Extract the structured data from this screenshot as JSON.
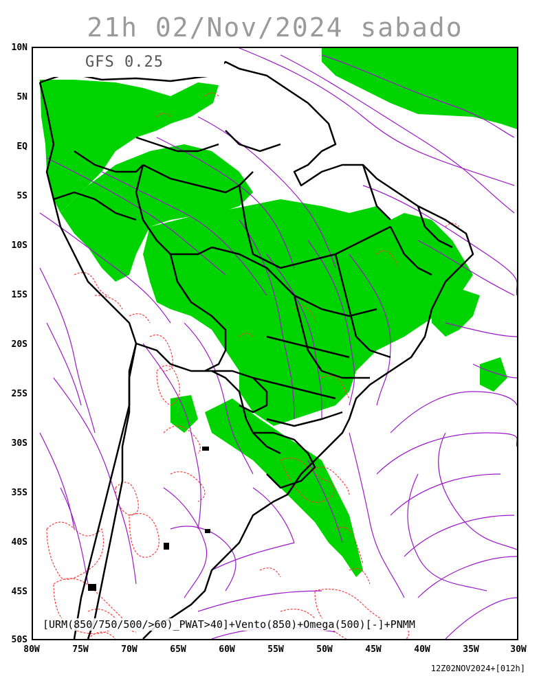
{
  "title": "21h 02/Nov/2024 sabado",
  "model_label": "GFS 0.25",
  "caption": "[URM(850/750/500/>60)_PWAT>40]+Vento(850)+Omega(500)[-]+PNMM",
  "footer": "12Z02NOV2024+[012h]",
  "colors": {
    "humidity": "#00d400",
    "omega": "#ff3a3a",
    "streamline": "#9a18c8",
    "border": "#000000"
  },
  "axes": {
    "lat_labels": [
      "10N",
      "5N",
      "EQ",
      "5S",
      "10S",
      "15S",
      "20S",
      "25S",
      "30S",
      "35S",
      "40S",
      "45S",
      "50S"
    ],
    "lon_labels": [
      "80W",
      "75W",
      "70W",
      "65W",
      "60W",
      "55W",
      "50W",
      "45W",
      "40W",
      "35W",
      "30W"
    ]
  }
}
